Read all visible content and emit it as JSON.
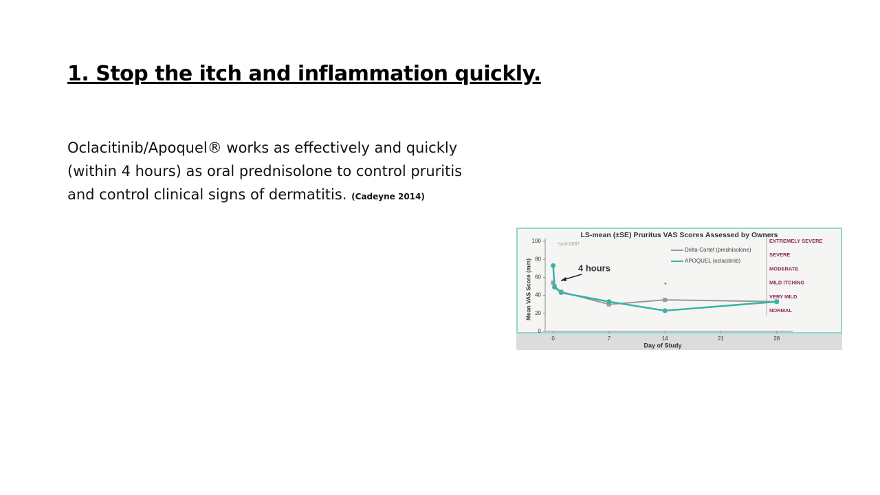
{
  "slide": {
    "heading": "1. Stop the itch and inflammation quickly.",
    "body": "Oclacitinib/Apoquel® works as effectively and quickly (within 4 hours) as oral prednisolone to control pruritis and control clinical signs of dermatitis.",
    "citation": "(Cadeyne 2014)"
  },
  "chart_data": {
    "type": "line",
    "title": "LS-mean (±SE) Pruritus VAS Scores Assessed by Owners",
    "x_label": "Day of Study",
    "y_label": "Mean VAS Score (mm)",
    "x": [
      0,
      0.17,
      1,
      7,
      14,
      28
    ],
    "series": [
      {
        "name": "Delta-Cortef (prednisolone)",
        "color": "#999999",
        "marker": "square",
        "values": [
          54,
          50,
          44,
          30,
          35,
          33
        ]
      },
      {
        "name": "APOQUEL (oclacitinib)",
        "color": "#3ab3a6",
        "marker": "circle",
        "values": [
          73,
          49,
          43,
          33,
          23,
          33
        ]
      }
    ],
    "xlim": [
      -1,
      30
    ],
    "xticks": [
      0,
      7,
      14,
      21,
      28
    ],
    "ylim": [
      0,
      100
    ],
    "yticks": [
      0,
      20,
      40,
      60,
      80,
      100
    ],
    "annotations": [
      "*p=0.0087",
      "4 hours",
      "*"
    ],
    "severity_labels": [
      "EXTREMELY SEVERE",
      "SEVERE",
      "MODERATE",
      "MILD ITCHING",
      "VERY MILD",
      "NORMAL"
    ]
  }
}
